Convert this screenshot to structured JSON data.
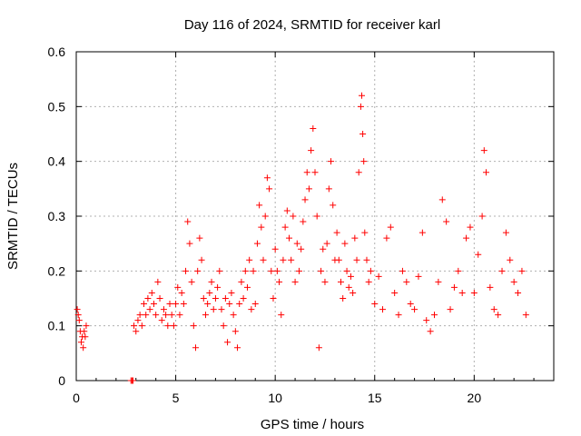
{
  "chart_data": {
    "type": "scatter",
    "title": "Day 116 of 2024, SRMTID for receiver karl",
    "xlabel": "GPS time / hours",
    "ylabel": "SRMTID / TECUs",
    "xlim": [
      0,
      24
    ],
    "ylim": [
      0,
      0.6
    ],
    "x_ticks": [
      0,
      5,
      10,
      15,
      20
    ],
    "y_ticks": [
      0,
      0.1,
      0.2,
      0.3,
      0.4,
      0.5,
      0.6
    ],
    "x_tick_labels": [
      "0",
      "5",
      "10",
      "15",
      "20"
    ],
    "y_tick_labels": [
      "0",
      "0.1",
      "0.2",
      "0.3",
      "0.4",
      "0.5",
      "0.6"
    ],
    "grid": true,
    "marker": "plus",
    "color": "#ff0000",
    "series": [
      {
        "name": "SRMTID",
        "points": [
          [
            0.05,
            0.13
          ],
          [
            0.1,
            0.12
          ],
          [
            0.15,
            0.11
          ],
          [
            0.2,
            0.09
          ],
          [
            0.25,
            0.07
          ],
          [
            0.3,
            0.08
          ],
          [
            0.35,
            0.06
          ],
          [
            0.4,
            0.09
          ],
          [
            0.45,
            0.08
          ],
          [
            0.5,
            0.1
          ],
          [
            2.75,
            0.0
          ],
          [
            2.8,
            0.0
          ],
          [
            2.85,
            0.0
          ],
          [
            2.9,
            0.1
          ],
          [
            3.0,
            0.09
          ],
          [
            3.1,
            0.11
          ],
          [
            3.2,
            0.12
          ],
          [
            3.3,
            0.1
          ],
          [
            3.4,
            0.14
          ],
          [
            3.5,
            0.12
          ],
          [
            3.6,
            0.15
          ],
          [
            3.7,
            0.13
          ],
          [
            3.8,
            0.16
          ],
          [
            3.9,
            0.14
          ],
          [
            4.0,
            0.12
          ],
          [
            4.1,
            0.18
          ],
          [
            4.2,
            0.15
          ],
          [
            4.3,
            0.11
          ],
          [
            4.4,
            0.13
          ],
          [
            4.5,
            0.12
          ],
          [
            4.6,
            0.1
          ],
          [
            4.7,
            0.14
          ],
          [
            4.8,
            0.12
          ],
          [
            4.9,
            0.1
          ],
          [
            5.0,
            0.14
          ],
          [
            5.1,
            0.17
          ],
          [
            5.2,
            0.12
          ],
          [
            5.3,
            0.16
          ],
          [
            5.4,
            0.14
          ],
          [
            5.5,
            0.2
          ],
          [
            5.6,
            0.29
          ],
          [
            5.7,
            0.25
          ],
          [
            5.8,
            0.18
          ],
          [
            5.9,
            0.1
          ],
          [
            6.0,
            0.06
          ],
          [
            6.1,
            0.2
          ],
          [
            6.2,
            0.26
          ],
          [
            6.3,
            0.22
          ],
          [
            6.4,
            0.15
          ],
          [
            6.5,
            0.12
          ],
          [
            6.6,
            0.14
          ],
          [
            6.7,
            0.16
          ],
          [
            6.8,
            0.18
          ],
          [
            6.9,
            0.13
          ],
          [
            7.0,
            0.15
          ],
          [
            7.1,
            0.17
          ],
          [
            7.2,
            0.2
          ],
          [
            7.3,
            0.13
          ],
          [
            7.4,
            0.1
          ],
          [
            7.5,
            0.15
          ],
          [
            7.6,
            0.07
          ],
          [
            7.7,
            0.14
          ],
          [
            7.8,
            0.16
          ],
          [
            7.9,
            0.12
          ],
          [
            8.0,
            0.09
          ],
          [
            8.1,
            0.06
          ],
          [
            8.2,
            0.14
          ],
          [
            8.3,
            0.18
          ],
          [
            8.4,
            0.15
          ],
          [
            8.5,
            0.2
          ],
          [
            8.6,
            0.17
          ],
          [
            8.7,
            0.22
          ],
          [
            8.8,
            0.13
          ],
          [
            8.9,
            0.2
          ],
          [
            9.0,
            0.14
          ],
          [
            9.1,
            0.25
          ],
          [
            9.2,
            0.32
          ],
          [
            9.3,
            0.28
          ],
          [
            9.4,
            0.22
          ],
          [
            9.5,
            0.3
          ],
          [
            9.6,
            0.37
          ],
          [
            9.7,
            0.35
          ],
          [
            9.8,
            0.2
          ],
          [
            9.9,
            0.15
          ],
          [
            10.0,
            0.24
          ],
          [
            10.1,
            0.2
          ],
          [
            10.2,
            0.18
          ],
          [
            10.3,
            0.12
          ],
          [
            10.4,
            0.22
          ],
          [
            10.5,
            0.28
          ],
          [
            10.6,
            0.31
          ],
          [
            10.7,
            0.26
          ],
          [
            10.8,
            0.22
          ],
          [
            10.9,
            0.3
          ],
          [
            11.0,
            0.18
          ],
          [
            11.1,
            0.25
          ],
          [
            11.2,
            0.2
          ],
          [
            11.3,
            0.24
          ],
          [
            11.4,
            0.29
          ],
          [
            11.5,
            0.33
          ],
          [
            11.6,
            0.38
          ],
          [
            11.7,
            0.35
          ],
          [
            11.8,
            0.42
          ],
          [
            11.9,
            0.46
          ],
          [
            12.0,
            0.38
          ],
          [
            12.1,
            0.3
          ],
          [
            12.2,
            0.06
          ],
          [
            12.3,
            0.2
          ],
          [
            12.4,
            0.24
          ],
          [
            12.5,
            0.18
          ],
          [
            12.6,
            0.25
          ],
          [
            12.7,
            0.35
          ],
          [
            12.8,
            0.4
          ],
          [
            12.9,
            0.32
          ],
          [
            13.0,
            0.22
          ],
          [
            13.1,
            0.27
          ],
          [
            13.2,
            0.22
          ],
          [
            13.3,
            0.18
          ],
          [
            13.4,
            0.15
          ],
          [
            13.5,
            0.25
          ],
          [
            13.6,
            0.2
          ],
          [
            13.7,
            0.17
          ],
          [
            13.8,
            0.19
          ],
          [
            13.9,
            0.16
          ],
          [
            14.0,
            0.26
          ],
          [
            14.1,
            0.22
          ],
          [
            14.2,
            0.38
          ],
          [
            14.3,
            0.5
          ],
          [
            14.35,
            0.52
          ],
          [
            14.4,
            0.45
          ],
          [
            14.45,
            0.4
          ],
          [
            14.5,
            0.27
          ],
          [
            14.6,
            0.22
          ],
          [
            14.7,
            0.18
          ],
          [
            14.8,
            0.2
          ],
          [
            15.0,
            0.14
          ],
          [
            15.2,
            0.19
          ],
          [
            15.4,
            0.13
          ],
          [
            15.6,
            0.26
          ],
          [
            15.8,
            0.28
          ],
          [
            16.0,
            0.16
          ],
          [
            16.2,
            0.12
          ],
          [
            16.4,
            0.2
          ],
          [
            16.6,
            0.18
          ],
          [
            16.8,
            0.14
          ],
          [
            17.0,
            0.13
          ],
          [
            17.2,
            0.19
          ],
          [
            17.4,
            0.27
          ],
          [
            17.6,
            0.11
          ],
          [
            17.8,
            0.09
          ],
          [
            18.0,
            0.12
          ],
          [
            18.2,
            0.18
          ],
          [
            18.4,
            0.33
          ],
          [
            18.6,
            0.29
          ],
          [
            18.8,
            0.13
          ],
          [
            19.0,
            0.17
          ],
          [
            19.2,
            0.2
          ],
          [
            19.4,
            0.16
          ],
          [
            19.6,
            0.26
          ],
          [
            19.8,
            0.28
          ],
          [
            20.0,
            0.16
          ],
          [
            20.2,
            0.23
          ],
          [
            20.4,
            0.3
          ],
          [
            20.5,
            0.42
          ],
          [
            20.6,
            0.38
          ],
          [
            20.8,
            0.17
          ],
          [
            21.0,
            0.13
          ],
          [
            21.2,
            0.12
          ],
          [
            21.4,
            0.2
          ],
          [
            21.6,
            0.27
          ],
          [
            21.8,
            0.22
          ],
          [
            22.0,
            0.18
          ],
          [
            22.2,
            0.16
          ],
          [
            22.4,
            0.2
          ],
          [
            22.6,
            0.12
          ]
        ]
      }
    ]
  }
}
